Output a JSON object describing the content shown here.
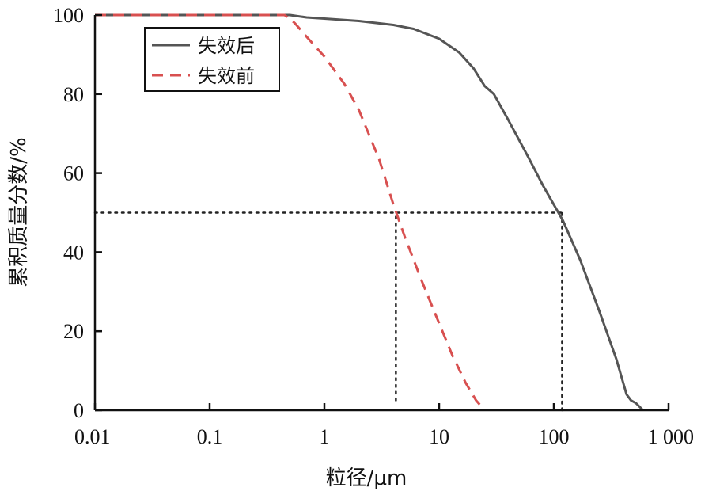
{
  "chart_data": {
    "type": "line",
    "xlabel": "粒径/μm",
    "ylabel": "累积质量分数/%",
    "xscale": "log",
    "xlim": [
      0.01,
      1000
    ],
    "ylim": [
      0,
      100
    ],
    "x_ticks": [
      0.01,
      0.1,
      1,
      10,
      100,
      1000
    ],
    "x_tick_labels": [
      "0.01",
      "0.1",
      "1",
      "10",
      "100",
      "1 000"
    ],
    "y_ticks": [
      0,
      20,
      40,
      60,
      80,
      100
    ],
    "y_tick_labels": [
      "0",
      "20",
      "40",
      "60",
      "80",
      "100"
    ],
    "grid": false,
    "legend_position": "top-left",
    "series": [
      {
        "name": "失效后",
        "color": "#555555",
        "style": "solid",
        "points": [
          [
            0.01,
            100
          ],
          [
            0.1,
            100
          ],
          [
            0.5,
            100
          ],
          [
            0.7,
            99.4
          ],
          [
            1,
            99.1
          ],
          [
            2,
            98.5
          ],
          [
            4,
            97.5
          ],
          [
            6,
            96.5
          ],
          [
            10,
            94.0
          ],
          [
            15,
            90.5
          ],
          [
            20,
            86.5
          ],
          [
            25,
            82.0
          ],
          [
            30,
            80.0
          ],
          [
            40,
            73.5
          ],
          [
            60,
            64.0
          ],
          [
            80,
            57.0
          ],
          [
            120,
            48.0
          ],
          [
            170,
            38.0
          ],
          [
            250,
            25.0
          ],
          [
            350,
            13.0
          ],
          [
            430,
            4.0
          ],
          [
            470,
            2.5
          ],
          [
            520,
            1.8
          ],
          [
            600,
            0
          ]
        ]
      },
      {
        "name": "失效前",
        "color": "#d85050",
        "style": "dashed",
        "points": [
          [
            0.01,
            100
          ],
          [
            0.1,
            100
          ],
          [
            0.45,
            100
          ],
          [
            0.55,
            98.0
          ],
          [
            0.7,
            94.5
          ],
          [
            1,
            89.5
          ],
          [
            1.5,
            82.5
          ],
          [
            2,
            76.0
          ],
          [
            3,
            63.5
          ],
          [
            4,
            52.0
          ],
          [
            5,
            44.0
          ],
          [
            7,
            33.0
          ],
          [
            10,
            22.0
          ],
          [
            13,
            14.0
          ],
          [
            17,
            7.0
          ],
          [
            21,
            2.5
          ],
          [
            25,
            0
          ]
        ]
      }
    ],
    "reference_lines": [
      {
        "orientation": "horizontal",
        "y": 50,
        "x_from": 0.01,
        "x_to": 120,
        "style": "dotted"
      },
      {
        "orientation": "vertical",
        "x": 4.2,
        "y_from": 2.5,
        "y_to": 50,
        "style": "dotted"
      },
      {
        "orientation": "vertical",
        "x": 118,
        "y_from": 0,
        "y_to": 50,
        "style": "dotted"
      }
    ]
  }
}
